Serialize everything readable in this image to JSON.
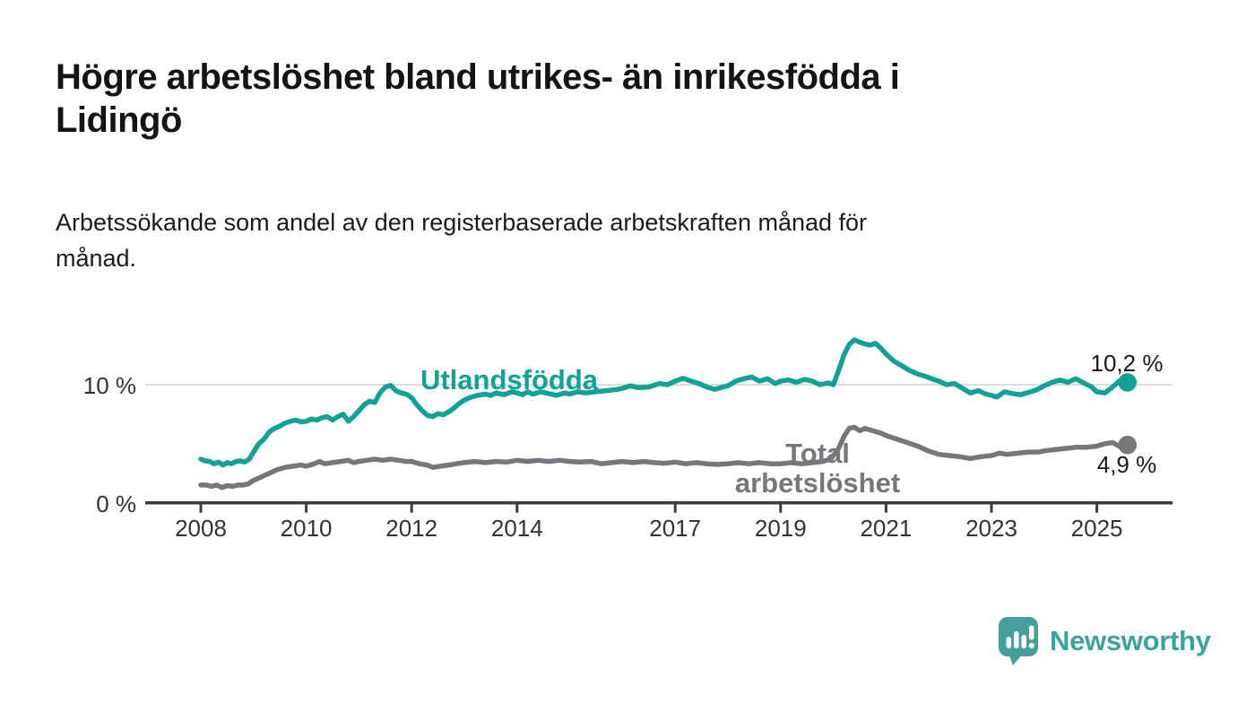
{
  "title": "Högre arbetslöshet bland utrikes- än inrikesfödda i\nLidingö",
  "subtitle": "Arbetssökande som andel av den registerbaserade arbetskraften månad för\nmånad.",
  "branding": {
    "logo_text": "Newsworthy",
    "logo_icon": "speech-bubble-bar-chart-icon",
    "brand_color": "#3ba39e"
  },
  "chart_data": {
    "type": "line",
    "unit": "%",
    "grid": "single horizontal gridline at 10%",
    "legend_position": "inline labels on lines",
    "gridlines": [
      10
    ],
    "y_ticks": [
      {
        "value": 0,
        "label": "0 %"
      },
      {
        "value": 10,
        "label": "10 %"
      }
    ],
    "x_ticks": [
      2008,
      2010,
      2012,
      2014,
      2017,
      2019,
      2021,
      2023,
      2025
    ],
    "x_range": [
      2006.9,
      2026.5
    ],
    "ylim": [
      0,
      17
    ],
    "axis_color": "#3c3c3c",
    "gridline_color": "#dcdcdc",
    "series": [
      {
        "name": "Utlandsfödda",
        "slug": "utlandsfodda",
        "color": "#10a295",
        "end_label": "10,2 %",
        "end_value": 10.2,
        "points": [
          [
            2008.0,
            3.7
          ],
          [
            2008.08,
            3.55
          ],
          [
            2008.17,
            3.5
          ],
          [
            2008.25,
            3.3
          ],
          [
            2008.33,
            3.45
          ],
          [
            2008.42,
            3.2
          ],
          [
            2008.5,
            3.4
          ],
          [
            2008.58,
            3.3
          ],
          [
            2008.67,
            3.5
          ],
          [
            2008.75,
            3.55
          ],
          [
            2008.83,
            3.45
          ],
          [
            2008.92,
            3.7
          ],
          [
            2009.0,
            4.3
          ],
          [
            2009.1,
            5.0
          ],
          [
            2009.2,
            5.4
          ],
          [
            2009.3,
            6.0
          ],
          [
            2009.4,
            6.3
          ],
          [
            2009.5,
            6.5
          ],
          [
            2009.6,
            6.75
          ],
          [
            2009.7,
            6.9
          ],
          [
            2009.8,
            7.0
          ],
          [
            2009.9,
            6.85
          ],
          [
            2010.0,
            6.9
          ],
          [
            2010.1,
            7.1
          ],
          [
            2010.2,
            7.0
          ],
          [
            2010.3,
            7.2
          ],
          [
            2010.4,
            7.3
          ],
          [
            2010.5,
            7.0
          ],
          [
            2010.6,
            7.3
          ],
          [
            2010.7,
            7.5
          ],
          [
            2010.8,
            6.9
          ],
          [
            2010.9,
            7.3
          ],
          [
            2011.0,
            7.8
          ],
          [
            2011.1,
            8.3
          ],
          [
            2011.2,
            8.6
          ],
          [
            2011.3,
            8.5
          ],
          [
            2011.4,
            9.3
          ],
          [
            2011.5,
            9.8
          ],
          [
            2011.6,
            9.95
          ],
          [
            2011.7,
            9.5
          ],
          [
            2011.8,
            9.3
          ],
          [
            2011.9,
            9.2
          ],
          [
            2012.0,
            8.9
          ],
          [
            2012.1,
            8.3
          ],
          [
            2012.2,
            7.8
          ],
          [
            2012.3,
            7.4
          ],
          [
            2012.4,
            7.3
          ],
          [
            2012.5,
            7.55
          ],
          [
            2012.6,
            7.45
          ],
          [
            2012.7,
            7.7
          ],
          [
            2012.8,
            8.0
          ],
          [
            2012.9,
            8.4
          ],
          [
            2013.0,
            8.7
          ],
          [
            2013.1,
            8.9
          ],
          [
            2013.25,
            9.1
          ],
          [
            2013.4,
            9.2
          ],
          [
            2013.5,
            9.1
          ],
          [
            2013.6,
            9.3
          ],
          [
            2013.75,
            9.15
          ],
          [
            2013.9,
            9.4
          ],
          [
            2014.0,
            9.3
          ],
          [
            2014.1,
            9.15
          ],
          [
            2014.2,
            9.4
          ],
          [
            2014.3,
            9.2
          ],
          [
            2014.45,
            9.4
          ],
          [
            2014.6,
            9.25
          ],
          [
            2014.75,
            9.1
          ],
          [
            2014.9,
            9.3
          ],
          [
            2015.0,
            9.2
          ],
          [
            2015.15,
            9.4
          ],
          [
            2015.3,
            9.3
          ],
          [
            2015.5,
            9.4
          ],
          [
            2015.7,
            9.5
          ],
          [
            2015.9,
            9.6
          ],
          [
            2016.0,
            9.7
          ],
          [
            2016.15,
            9.9
          ],
          [
            2016.3,
            9.75
          ],
          [
            2016.5,
            9.8
          ],
          [
            2016.7,
            10.1
          ],
          [
            2016.85,
            10.0
          ],
          [
            2017.0,
            10.3
          ],
          [
            2017.15,
            10.55
          ],
          [
            2017.3,
            10.3
          ],
          [
            2017.45,
            10.1
          ],
          [
            2017.6,
            9.8
          ],
          [
            2017.75,
            9.6
          ],
          [
            2017.9,
            9.8
          ],
          [
            2018.0,
            9.9
          ],
          [
            2018.15,
            10.3
          ],
          [
            2018.3,
            10.5
          ],
          [
            2018.45,
            10.65
          ],
          [
            2018.6,
            10.3
          ],
          [
            2018.75,
            10.5
          ],
          [
            2018.9,
            10.1
          ],
          [
            2019.0,
            10.3
          ],
          [
            2019.15,
            10.4
          ],
          [
            2019.3,
            10.2
          ],
          [
            2019.45,
            10.45
          ],
          [
            2019.6,
            10.3
          ],
          [
            2019.75,
            10.0
          ],
          [
            2019.9,
            10.15
          ],
          [
            2020.0,
            10.0
          ],
          [
            2020.1,
            11.2
          ],
          [
            2020.2,
            12.5
          ],
          [
            2020.3,
            13.4
          ],
          [
            2020.4,
            13.8
          ],
          [
            2020.5,
            13.6
          ],
          [
            2020.6,
            13.45
          ],
          [
            2020.7,
            13.35
          ],
          [
            2020.8,
            13.5
          ],
          [
            2020.9,
            13.1
          ],
          [
            2021.0,
            12.6
          ],
          [
            2021.15,
            12.0
          ],
          [
            2021.3,
            11.6
          ],
          [
            2021.45,
            11.2
          ],
          [
            2021.6,
            10.9
          ],
          [
            2021.75,
            10.7
          ],
          [
            2021.9,
            10.45
          ],
          [
            2022.0,
            10.3
          ],
          [
            2022.15,
            10.0
          ],
          [
            2022.3,
            10.1
          ],
          [
            2022.45,
            9.7
          ],
          [
            2022.6,
            9.3
          ],
          [
            2022.75,
            9.5
          ],
          [
            2022.9,
            9.2
          ],
          [
            2023.0,
            9.1
          ],
          [
            2023.1,
            8.95
          ],
          [
            2023.25,
            9.4
          ],
          [
            2023.4,
            9.25
          ],
          [
            2023.55,
            9.15
          ],
          [
            2023.7,
            9.35
          ],
          [
            2023.85,
            9.55
          ],
          [
            2024.0,
            9.9
          ],
          [
            2024.15,
            10.2
          ],
          [
            2024.3,
            10.4
          ],
          [
            2024.45,
            10.2
          ],
          [
            2024.6,
            10.5
          ],
          [
            2024.75,
            10.15
          ],
          [
            2024.9,
            9.8
          ],
          [
            2025.0,
            9.4
          ],
          [
            2025.15,
            9.3
          ],
          [
            2025.3,
            9.8
          ],
          [
            2025.42,
            10.3
          ],
          [
            2025.5,
            10.1
          ],
          [
            2025.58,
            10.2
          ]
        ]
      },
      {
        "name": "Total arbetslöshet",
        "slug": "total-arbetsloshet",
        "color": "#76767c",
        "end_label": "4,9 %",
        "end_value": 4.9,
        "points": [
          [
            2008.0,
            1.5
          ],
          [
            2008.1,
            1.5
          ],
          [
            2008.2,
            1.4
          ],
          [
            2008.3,
            1.5
          ],
          [
            2008.4,
            1.3
          ],
          [
            2008.5,
            1.45
          ],
          [
            2008.6,
            1.4
          ],
          [
            2008.7,
            1.5
          ],
          [
            2008.8,
            1.5
          ],
          [
            2008.9,
            1.6
          ],
          [
            2009.0,
            1.9
          ],
          [
            2009.15,
            2.2
          ],
          [
            2009.3,
            2.5
          ],
          [
            2009.45,
            2.8
          ],
          [
            2009.6,
            3.0
          ],
          [
            2009.75,
            3.1
          ],
          [
            2009.9,
            3.2
          ],
          [
            2010.0,
            3.1
          ],
          [
            2010.15,
            3.3
          ],
          [
            2010.25,
            3.5
          ],
          [
            2010.35,
            3.3
          ],
          [
            2010.5,
            3.4
          ],
          [
            2010.65,
            3.5
          ],
          [
            2010.8,
            3.6
          ],
          [
            2010.9,
            3.4
          ],
          [
            2011.0,
            3.5
          ],
          [
            2011.15,
            3.6
          ],
          [
            2011.3,
            3.7
          ],
          [
            2011.45,
            3.6
          ],
          [
            2011.6,
            3.7
          ],
          [
            2011.75,
            3.6
          ],
          [
            2011.9,
            3.5
          ],
          [
            2012.0,
            3.5
          ],
          [
            2012.15,
            3.3
          ],
          [
            2012.3,
            3.2
          ],
          [
            2012.4,
            3.0
          ],
          [
            2012.55,
            3.1
          ],
          [
            2012.7,
            3.2
          ],
          [
            2012.85,
            3.3
          ],
          [
            2013.0,
            3.4
          ],
          [
            2013.2,
            3.5
          ],
          [
            2013.4,
            3.4
          ],
          [
            2013.6,
            3.5
          ],
          [
            2013.8,
            3.45
          ],
          [
            2014.0,
            3.6
          ],
          [
            2014.2,
            3.5
          ],
          [
            2014.4,
            3.6
          ],
          [
            2014.6,
            3.5
          ],
          [
            2014.8,
            3.6
          ],
          [
            2015.0,
            3.5
          ],
          [
            2015.2,
            3.45
          ],
          [
            2015.4,
            3.5
          ],
          [
            2015.6,
            3.3
          ],
          [
            2015.8,
            3.4
          ],
          [
            2016.0,
            3.5
          ],
          [
            2016.2,
            3.4
          ],
          [
            2016.4,
            3.5
          ],
          [
            2016.6,
            3.4
          ],
          [
            2016.8,
            3.35
          ],
          [
            2017.0,
            3.45
          ],
          [
            2017.2,
            3.3
          ],
          [
            2017.4,
            3.4
          ],
          [
            2017.6,
            3.3
          ],
          [
            2017.8,
            3.25
          ],
          [
            2018.0,
            3.3
          ],
          [
            2018.2,
            3.4
          ],
          [
            2018.4,
            3.3
          ],
          [
            2018.6,
            3.4
          ],
          [
            2018.8,
            3.3
          ],
          [
            2019.0,
            3.3
          ],
          [
            2019.2,
            3.4
          ],
          [
            2019.4,
            3.3
          ],
          [
            2019.6,
            3.4
          ],
          [
            2019.8,
            3.5
          ],
          [
            2019.95,
            3.7
          ],
          [
            2020.1,
            4.6
          ],
          [
            2020.2,
            5.6
          ],
          [
            2020.3,
            6.3
          ],
          [
            2020.4,
            6.4
          ],
          [
            2020.5,
            6.1
          ],
          [
            2020.6,
            6.3
          ],
          [
            2020.75,
            6.1
          ],
          [
            2020.9,
            5.9
          ],
          [
            2021.0,
            5.7
          ],
          [
            2021.2,
            5.4
          ],
          [
            2021.4,
            5.1
          ],
          [
            2021.6,
            4.8
          ],
          [
            2021.8,
            4.4
          ],
          [
            2022.0,
            4.1
          ],
          [
            2022.2,
            4.0
          ],
          [
            2022.4,
            3.9
          ],
          [
            2022.6,
            3.75
          ],
          [
            2022.8,
            3.9
          ],
          [
            2023.0,
            4.0
          ],
          [
            2023.15,
            4.2
          ],
          [
            2023.3,
            4.1
          ],
          [
            2023.5,
            4.2
          ],
          [
            2023.7,
            4.3
          ],
          [
            2023.9,
            4.3
          ],
          [
            2024.0,
            4.4
          ],
          [
            2024.2,
            4.5
          ],
          [
            2024.4,
            4.6
          ],
          [
            2024.6,
            4.7
          ],
          [
            2024.8,
            4.7
          ],
          [
            2025.0,
            4.8
          ],
          [
            2025.15,
            5.0
          ],
          [
            2025.3,
            5.1
          ],
          [
            2025.42,
            4.8
          ],
          [
            2025.58,
            4.9
          ]
        ]
      }
    ]
  }
}
